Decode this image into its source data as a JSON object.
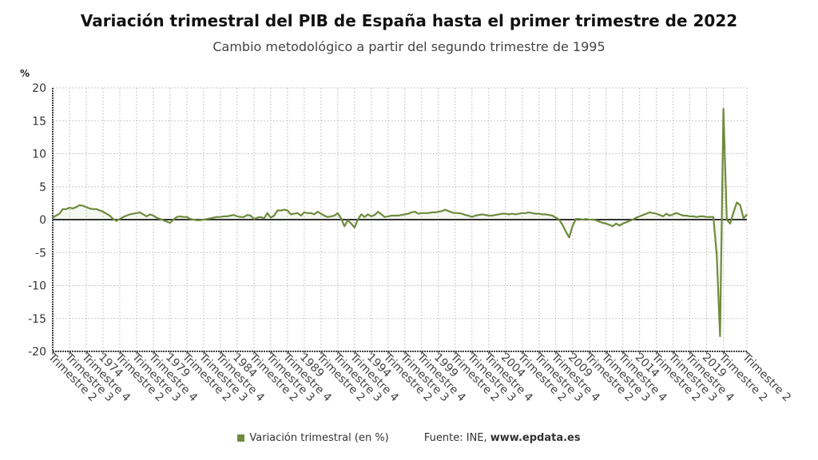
{
  "title": "Variación trimestral del PIB de España hasta el primer trimestre de 2022",
  "subtitle": "Cambio metodológico a partir del segundo trimestre de 1995",
  "legend": {
    "label": "Variación trimestral (en %)",
    "source_prefix": "Fuente: INE, ",
    "source_site": "www.epdata.es"
  },
  "chart_data": {
    "type": "line",
    "title": "Variación trimestral del PIB de España hasta el primer trimestre de 2022",
    "subtitle": "Cambio metodológico a partir del segundo trimestre de 1995",
    "ylabel": "%",
    "ylim": [
      -20,
      20
    ],
    "yticks": [
      20,
      15,
      10,
      5,
      0,
      -5,
      -10,
      -15,
      -20
    ],
    "grid": true,
    "legend_position": "bottom",
    "line_color": "#6e8b3d",
    "x_tick_labels": [
      "Trimestre 2",
      "Trimestre 3",
      "Trimestre 4",
      "1974",
      "Trimestre 2",
      "Trimestre 3",
      "Trimestre 4",
      "1979",
      "Trimestre 2",
      "Trimestre 3",
      "Trimestre 4",
      "1984",
      "Trimestre 2",
      "Trimestre 3",
      "Trimestre 4",
      "1989",
      "Trimestre 2",
      "Trimestre 3",
      "Trimestre 4",
      "1994",
      "Trimestre 2",
      "Trimestre 3",
      "Trimestre 4",
      "1999",
      "Trimestre 2",
      "Trimestre 3",
      "Trimestre 4",
      "2004",
      "Trimestre 2",
      "Trimestre 3",
      "Trimestre 4",
      "2009",
      "Trimestre 2",
      "Trimestre 3",
      "Trimestre 4",
      "2014",
      "Trimestre 2",
      "Trimestre 3",
      "Trimestre 4",
      "2019",
      "Trimestre 2",
      "Trimestre 2"
    ],
    "series": [
      {
        "name": "Variación trimestral (en %)",
        "values": [
          0.3,
          0.6,
          0.9,
          1.6,
          1.6,
          1.8,
          1.7,
          1.9,
          2.2,
          2.1,
          1.9,
          1.7,
          1.6,
          1.6,
          1.4,
          1.2,
          0.9,
          0.6,
          0.1,
          -0.2,
          0.1,
          0.4,
          0.6,
          0.8,
          0.9,
          1.0,
          1.1,
          0.8,
          0.5,
          0.8,
          0.6,
          0.3,
          0.1,
          -0.1,
          -0.3,
          -0.5,
          0.0,
          0.4,
          0.5,
          0.4,
          0.4,
          0.1,
          0.0,
          -0.1,
          -0.1,
          0.0,
          0.1,
          0.2,
          0.3,
          0.4,
          0.4,
          0.5,
          0.5,
          0.6,
          0.7,
          0.5,
          0.4,
          0.4,
          0.7,
          0.6,
          0.1,
          0.3,
          0.4,
          0.2,
          1.0,
          0.3,
          0.6,
          1.4,
          1.4,
          1.5,
          1.4,
          0.8,
          0.9,
          1.0,
          0.6,
          1.1,
          1.0,
          1.0,
          0.8,
          1.2,
          0.9,
          0.6,
          0.4,
          0.5,
          0.6,
          1.0,
          0.2,
          -1.0,
          -0.1,
          -0.6,
          -1.2,
          0.0,
          0.8,
          0.4,
          0.8,
          0.5,
          0.7,
          1.2,
          0.8,
          0.4,
          0.5,
          0.6,
          0.6,
          0.6,
          0.7,
          0.8,
          0.9,
          1.1,
          1.2,
          0.9,
          1.0,
          1.0,
          1.0,
          1.1,
          1.1,
          1.2,
          1.3,
          1.5,
          1.3,
          1.1,
          1.0,
          1.0,
          0.9,
          0.7,
          0.6,
          0.4,
          0.6,
          0.7,
          0.8,
          0.7,
          0.6,
          0.6,
          0.7,
          0.8,
          0.9,
          0.9,
          0.8,
          0.9,
          0.8,
          0.9,
          1.0,
          1.0,
          1.1,
          1.0,
          0.9,
          0.9,
          0.8,
          0.8,
          0.7,
          0.6,
          0.3,
          0.0,
          -0.8,
          -1.8,
          -2.7,
          -1.0,
          0.1,
          0.1,
          0.0,
          0.1,
          0.0,
          0.0,
          -0.1,
          -0.3,
          -0.5,
          -0.6,
          -0.8,
          -1.0,
          -0.6,
          -0.9,
          -0.6,
          -0.4,
          -0.2,
          0.0,
          0.3,
          0.5,
          0.7,
          0.9,
          1.1,
          1.0,
          0.9,
          0.7,
          0.5,
          0.9,
          0.6,
          0.8,
          1.0,
          0.8,
          0.6,
          0.6,
          0.5,
          0.5,
          0.4,
          0.5,
          0.5,
          0.4,
          0.4,
          0.4,
          -5.3,
          -17.7,
          16.8,
          0.0,
          -0.6,
          1.1,
          2.6,
          2.2,
          0.2,
          0.8
        ]
      }
    ]
  }
}
